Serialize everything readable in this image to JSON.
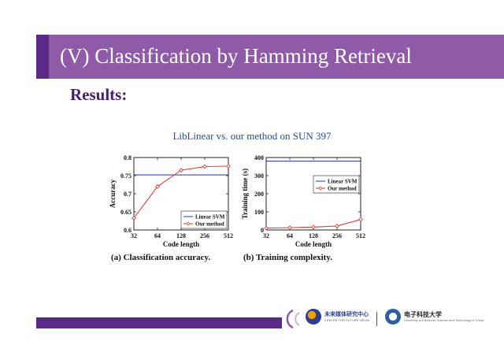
{
  "slide": {
    "title": "(V)  Classification by Hamming Retrieval",
    "results_label": "Results:",
    "subtitle": "LibLinear vs. our method on SUN 397",
    "colors": {
      "title_band": "#8f5aa8",
      "accent": "#5b2a86",
      "results": "#4b1c70",
      "subtitle": "#2e4a8e"
    }
  },
  "captions": {
    "a": "(a) Classification accuracy.",
    "b": "(b) Training complexity."
  },
  "logos": {
    "left_main": "未来媒体研究中心",
    "left_sub": "CENTER FOR FUTURE MEDIA",
    "right_main": "电子科技大学",
    "right_sub": "University of Electronic Science and Technology of China"
  },
  "chart_data": [
    {
      "type": "line",
      "x": [
        32,
        64,
        128,
        256,
        512
      ],
      "xticks": [
        "32",
        "64",
        "128",
        "256",
        "512"
      ],
      "xscale": "log2",
      "xlabel": "Code length",
      "ylabel": "Accuracy",
      "ylim": [
        0.6,
        0.8
      ],
      "yticks": [
        "0.6",
        "0.65",
        "0.7",
        "0.75",
        "0.8"
      ],
      "legend": "bottom-right",
      "series": [
        {
          "name": "Linear SVM",
          "values": [
            0.752,
            0.752,
            0.752,
            0.752,
            0.752
          ],
          "color": "#3a46d6",
          "marker": "none"
        },
        {
          "name": "Our method",
          "values": [
            0.633,
            0.72,
            0.765,
            0.775,
            0.776
          ],
          "color": "#e0403a",
          "marker": "diamond"
        }
      ]
    },
    {
      "type": "line",
      "x": [
        32,
        64,
        128,
        256,
        512
      ],
      "xticks": [
        "32",
        "64",
        "128",
        "256",
        "512"
      ],
      "xscale": "log2",
      "xlabel": "Code length",
      "ylabel": "Training time (s)",
      "ylim": [
        0,
        400
      ],
      "yticks": [
        "0",
        "100",
        "200",
        "300",
        "400"
      ],
      "legend": "center-right",
      "series": [
        {
          "name": "Linear SVM",
          "values": [
            380,
            380,
            380,
            380,
            380
          ],
          "color": "#3a46d6",
          "marker": "none"
        },
        {
          "name": "Our method",
          "values": [
            10,
            13,
            16,
            22,
            58
          ],
          "color": "#e0403a",
          "marker": "diamond"
        }
      ]
    }
  ]
}
